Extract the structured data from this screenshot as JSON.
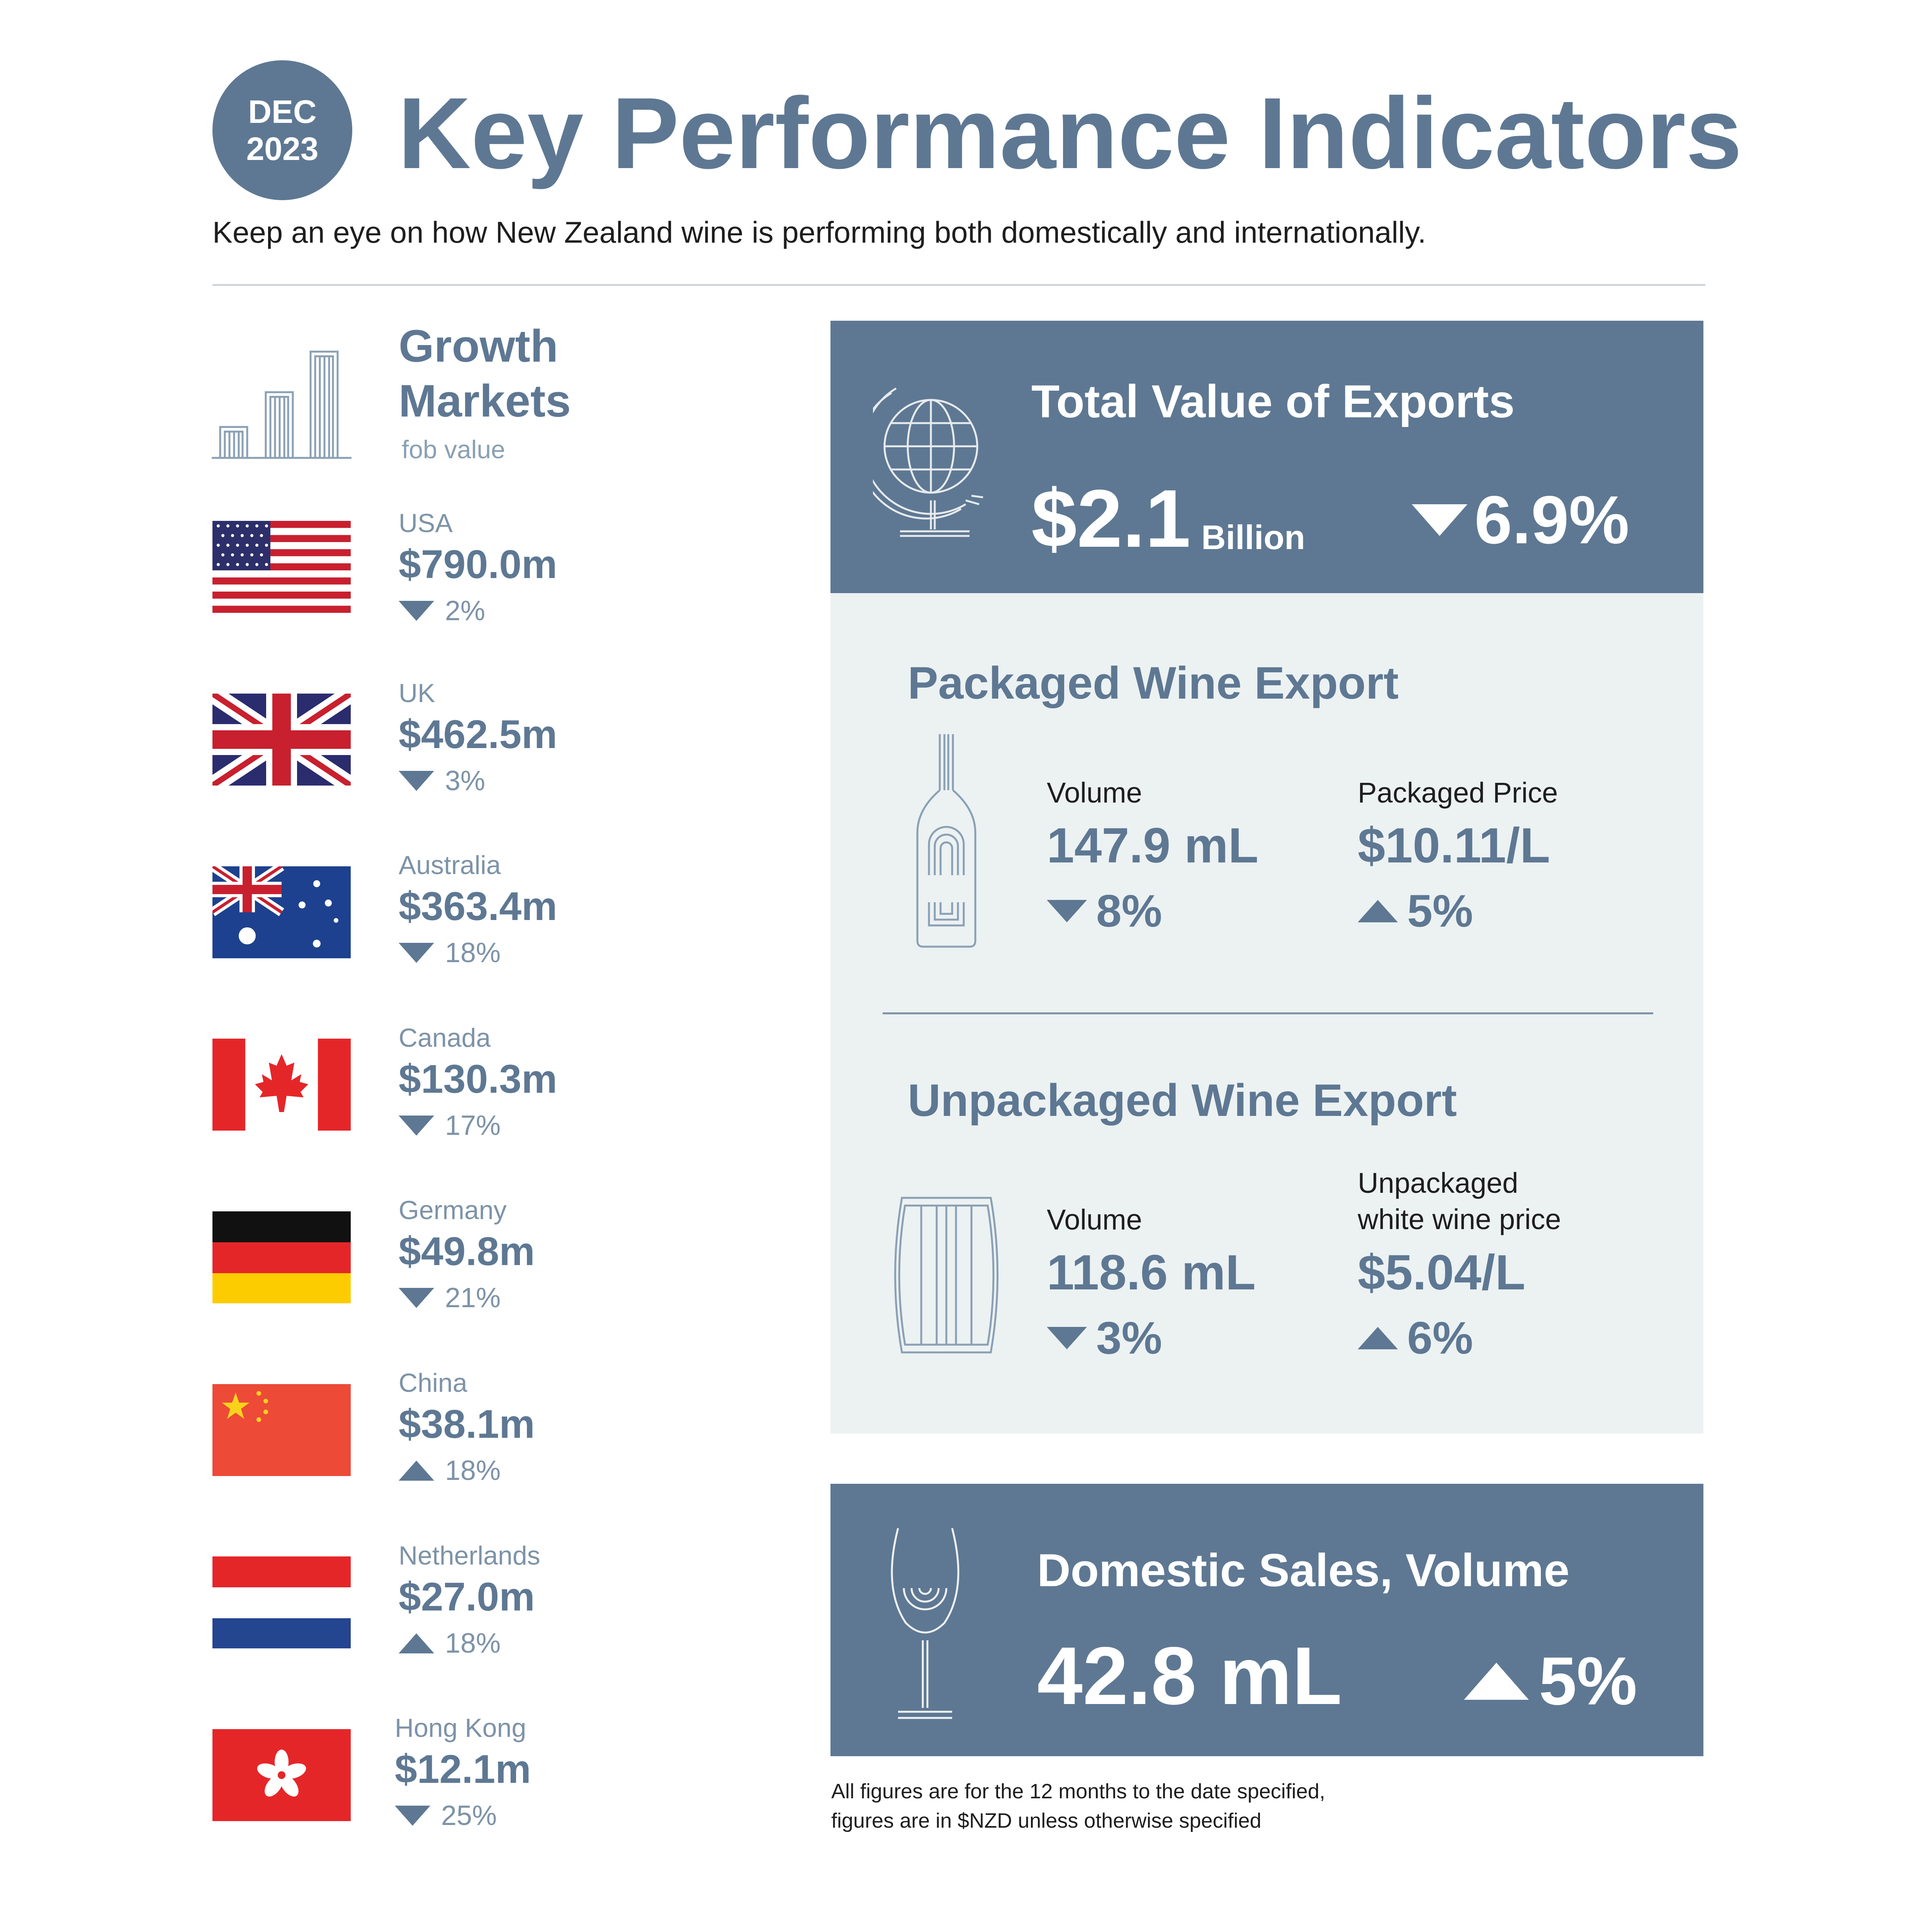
{
  "header": {
    "badge_month": "DEC",
    "badge_year": "2023",
    "title": "Key Performance Indicators",
    "subtitle": "Keep an eye on how New Zealand wine is performing both domestically and internationally."
  },
  "growth_markets": {
    "title_line1": "Growth",
    "title_line2": "Markets",
    "subtitle": "fob value",
    "markets": [
      {
        "name": "USA",
        "value": "$790.0m",
        "change": "2%",
        "direction": "down",
        "flag": "usa-flag"
      },
      {
        "name": "UK",
        "value": "$462.5m",
        "change": "3%",
        "direction": "down",
        "flag": "uk-flag"
      },
      {
        "name": "Australia",
        "value": "$363.4m",
        "change": "18%",
        "direction": "down",
        "flag": "australia-flag"
      },
      {
        "name": "Canada",
        "value": "$130.3m",
        "change": "17%",
        "direction": "down",
        "flag": "canada-flag"
      },
      {
        "name": "Germany",
        "value": "$49.8m",
        "change": "21%",
        "direction": "down",
        "flag": "germany-flag"
      },
      {
        "name": "China",
        "value": "$38.1m",
        "change": "18%",
        "direction": "up",
        "flag": "china-flag"
      },
      {
        "name": "Netherlands",
        "value": "$27.0m",
        "change": "18%",
        "direction": "up",
        "flag": "netherlands-flag"
      },
      {
        "name": "Hong Kong",
        "value": "$12.1m",
        "change": "25%",
        "direction": "down",
        "flag": "hong-kong-flag"
      }
    ]
  },
  "total_exports": {
    "title": "Total Value of Exports",
    "value": "$2.1",
    "unit": "Billion",
    "change": "6.9%",
    "direction": "down",
    "icon": "globe-icon"
  },
  "packaged": {
    "title": "Packaged Wine Export",
    "icon": "bottle-icon",
    "volume_label": "Volume",
    "volume_value": "147.9 mL",
    "volume_change": "8%",
    "volume_direction": "down",
    "price_label": "Packaged Price",
    "price_value": "$10.11/L",
    "price_change": "5%",
    "price_direction": "up"
  },
  "unpackaged": {
    "title": "Unpackaged Wine Export",
    "icon": "barrel-icon",
    "volume_label": "Volume",
    "volume_value": "118.6 mL",
    "volume_change": "3%",
    "volume_direction": "down",
    "price_label_line1": "Unpackaged",
    "price_label_line2": "white wine price",
    "price_value": "$5.04/L",
    "price_change": "6%",
    "price_direction": "up"
  },
  "domestic": {
    "title": "Domestic Sales, Volume",
    "value": "42.8 mL",
    "change": "5%",
    "direction": "up",
    "icon": "wine-glass-icon"
  },
  "footnote": {
    "line1": "All figures are for the 12 months to the date specified,",
    "line2": "figures are in $NZD unless otherwise specified"
  },
  "colors": {
    "accent": "#5e7893",
    "light_panel": "#ecf1f2",
    "text_dark": "#1e1e1e"
  }
}
